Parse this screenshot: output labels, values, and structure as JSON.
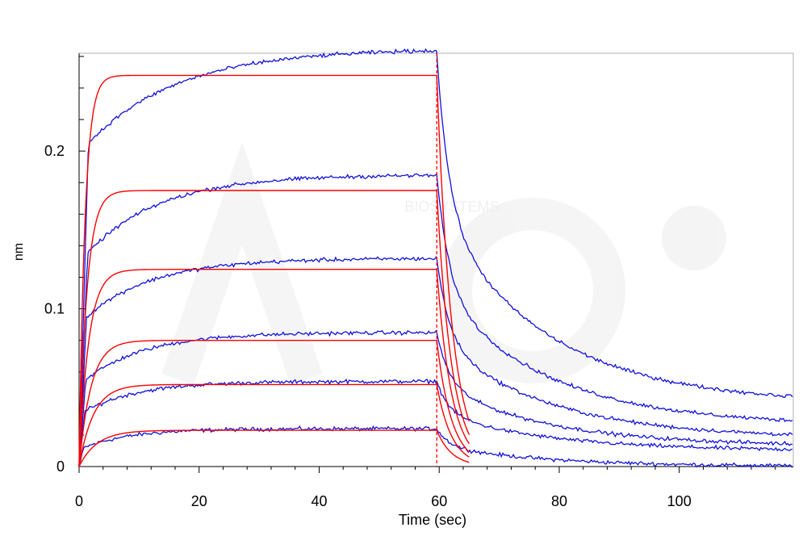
{
  "chart_data": {
    "type": "line",
    "title": "",
    "xlabel": "Time (sec)",
    "ylabel": "nm",
    "xlim": [
      0,
      119
    ],
    "ylim": [
      0,
      0.262
    ],
    "xticks": [
      0,
      20,
      40,
      60,
      80,
      100
    ],
    "xtick_labels": [
      "0",
      "20",
      "40",
      "60",
      "80",
      "100"
    ],
    "yticks": [
      0,
      0.1,
      0.2
    ],
    "ytick_labels": [
      "0",
      "0.1",
      "0.2"
    ],
    "grid": false,
    "legend": "none",
    "vertical_marker_x": 59.6,
    "colors": {
      "measured": "#1010e0",
      "fitted": "#ff0000",
      "axis": "#000000",
      "frame": "#b0b0b0"
    },
    "series": [
      {
        "kind": "measured",
        "assoc_start": 0.012,
        "tau_a": 8,
        "equilibrium": 0.024,
        "dissoc_start": 0.024,
        "residual": 0.0
      },
      {
        "kind": "measured",
        "assoc_start": 0.035,
        "tau_a": 9,
        "equilibrium": 0.054,
        "dissoc_start": 0.054,
        "residual": 0.01
      },
      {
        "kind": "measured",
        "assoc_start": 0.055,
        "tau_a": 10,
        "equilibrium": 0.085,
        "dissoc_start": 0.085,
        "residual": 0.013
      },
      {
        "kind": "measured",
        "assoc_start": 0.095,
        "tau_a": 11,
        "equilibrium": 0.132,
        "dissoc_start": 0.132,
        "residual": 0.018
      },
      {
        "kind": "measured",
        "assoc_start": 0.135,
        "tau_a": 12,
        "equilibrium": 0.185,
        "dissoc_start": 0.185,
        "residual": 0.026
      },
      {
        "kind": "measured",
        "assoc_start": 0.205,
        "tau_a": 15,
        "equilibrium": 0.265,
        "dissoc_start": 0.262,
        "residual": 0.04
      },
      {
        "kind": "fitted",
        "equilibrium": 0.023,
        "tau_a": 3.0,
        "end_x": 65
      },
      {
        "kind": "fitted",
        "equilibrium": 0.052,
        "tau_a": 2.4,
        "end_x": 65
      },
      {
        "kind": "fitted",
        "equilibrium": 0.08,
        "tau_a": 2.0,
        "end_x": 65
      },
      {
        "kind": "fitted",
        "equilibrium": 0.125,
        "tau_a": 1.6,
        "end_x": 65
      },
      {
        "kind": "fitted",
        "equilibrium": 0.175,
        "tau_a": 1.3,
        "end_x": 65
      },
      {
        "kind": "fitted",
        "equilibrium": 0.248,
        "tau_a": 1.0,
        "end_x": 65
      }
    ]
  }
}
